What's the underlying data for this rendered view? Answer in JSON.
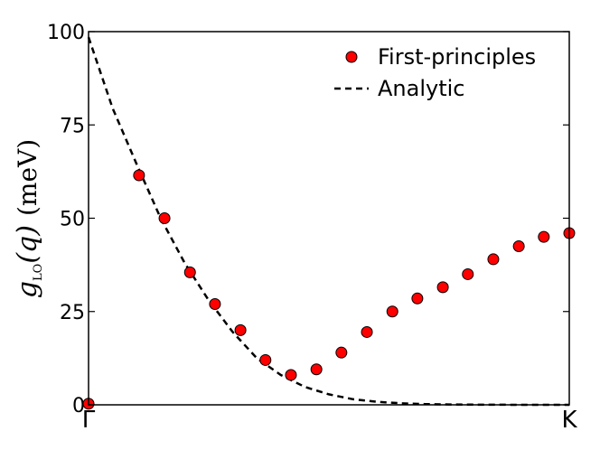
{
  "chart_data": {
    "type": "scatter",
    "title": "",
    "xlabel": "",
    "ylabel": {
      "symbol": "g",
      "subscript": "LO",
      "argument": "(q)",
      "unit": "(meV)"
    },
    "x_ticks": [
      "Γ",
      "K"
    ],
    "xlim": [
      0,
      1
    ],
    "ylim": [
      0,
      100
    ],
    "y_ticks": [
      "0",
      "25",
      "50",
      "75",
      "100"
    ],
    "grid": false,
    "legend_position": "top-right",
    "legend": [
      "First-principles",
      "Analytic"
    ],
    "colors": {
      "points": "#ff0000",
      "point_edge": "#000000",
      "curve": "#000000"
    },
    "series": [
      {
        "name": "First-principles",
        "type": "scatter",
        "x": [
          0.0,
          0.105,
          0.158,
          0.211,
          0.263,
          0.316,
          0.368,
          0.421,
          0.474,
          0.526,
          0.579,
          0.632,
          0.684,
          0.737,
          0.789,
          0.842,
          0.895,
          0.947,
          1.0
        ],
        "values": [
          0.3,
          61.5,
          50.0,
          35.5,
          27.0,
          20.0,
          12.0,
          8.0,
          9.5,
          14.0,
          19.5,
          25.0,
          28.5,
          31.5,
          35.0,
          39.0,
          42.5,
          45.0,
          46.0
        ]
      },
      {
        "name": "Analytic",
        "type": "line",
        "style": "dashed",
        "x": [
          0.0,
          0.05,
          0.1,
          0.15,
          0.2,
          0.25,
          0.3,
          0.35,
          0.4,
          0.45,
          0.5,
          0.55,
          0.6,
          0.65,
          0.7,
          0.75,
          0.8,
          0.85,
          0.9,
          0.95,
          1.0
        ],
        "values": [
          98.5,
          79.5,
          64.5,
          50.0,
          38.0,
          28.0,
          19.5,
          12.5,
          8.0,
          4.8,
          2.8,
          1.5,
          0.8,
          0.4,
          0.2,
          0.1,
          0.05,
          0.02,
          0.0,
          0.0,
          0.0
        ]
      }
    ]
  }
}
